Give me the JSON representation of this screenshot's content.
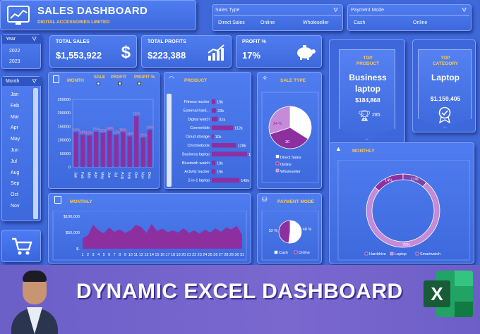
{
  "header": {
    "title": "SALES DASHBOARD",
    "subtitle": "DIGITAL ACCESSORIES LIMITED"
  },
  "sale_type_slicer": {
    "label": "Sales Type",
    "options": [
      "Direct Sales",
      "Online",
      "Wholeseller"
    ]
  },
  "payment_slicer": {
    "label": "Payment Mode",
    "options": [
      "Cash",
      "Online"
    ]
  },
  "year_slicer": {
    "label": "Year",
    "options": [
      "2022",
      "2023"
    ]
  },
  "month_slicer": {
    "label": "Month",
    "options": [
      "Jan",
      "Feb",
      "Mar",
      "Apr",
      "May",
      "Jun",
      "Jul",
      "Aug",
      "Sep",
      "Oct",
      "Nov"
    ]
  },
  "kpis": [
    {
      "label": "TOTAL SALES",
      "value": "$1,553,922",
      "icon": "dollar-icon"
    },
    {
      "label": "TOTAL PROFITS",
      "value": "$223,388",
      "icon": "growth-chart-icon"
    },
    {
      "label": "PROFIT %",
      "value": "17%",
      "icon": "piggy-bank-icon"
    }
  ],
  "top_product": {
    "label_line1": "TOP",
    "label_line2": "PRODUCT",
    "name_line1": "Business",
    "name_line2": "laptop",
    "value": "$184,868",
    "count": "285"
  },
  "top_category": {
    "label_line1": "TOP",
    "label_line2": "CATEGORY",
    "name": "Laptop",
    "value": "$1,159,405"
  },
  "month_panel": {
    "title": "MONTH",
    "checks": [
      "SALE",
      "PROFIT",
      "PROFIT %"
    ]
  },
  "product_panel": {
    "title": "PRODUCT"
  },
  "sale_type_panel": {
    "title": "SALE TYPE"
  },
  "monthly_area_panel": {
    "title": "MONTHLY"
  },
  "payment_panel": {
    "title": "PAYMENT MODE"
  },
  "monthly_donut_panel": {
    "title": "MONTHLY"
  },
  "banner": {
    "text": "DYNAMIC EXCEL DASHBOARD"
  },
  "colors": {
    "accent": "#8e2fa0",
    "gold": "#ffc94a",
    "panel": "#4a75e6"
  },
  "chart_data": [
    {
      "type": "bar",
      "categories": [
        "Jan",
        "Feb",
        "Mar",
        "Apr",
        "May",
        "Jun",
        "Jul",
        "Aug",
        "Sep",
        "Oct",
        "Nov",
        "Dec"
      ],
      "values": [
        128000,
        118000,
        116000,
        130000,
        125000,
        133000,
        118000,
        128000,
        113000,
        187000,
        108000,
        137000
      ],
      "data_labels": [
        "14%",
        "14%",
        "15%",
        "15%",
        "15%",
        "14%",
        "13%",
        "15%",
        "14%",
        "15%",
        "19%",
        "14%"
      ],
      "yticks": [
        "250000",
        "200000",
        "150000",
        "100000",
        "50000",
        "0"
      ],
      "ylim": [
        0,
        250000
      ]
    },
    {
      "type": "bar",
      "orientation": "horizontal",
      "categories": [
        "Fitness tracker",
        "External hard...",
        "Digital watch",
        "Convertible",
        "Cloud storage",
        "Chromebook",
        "Business laptop",
        "Bluetooth watch",
        "Activity tracker",
        "2-in-1 laptop"
      ],
      "values": [
        19,
        23,
        31,
        112,
        10,
        128,
        185,
        19,
        19,
        145
      ],
      "labels": [
        "19k",
        "23k",
        "31k",
        "112k",
        "10k",
        "128k",
        "185k",
        "19k",
        "19k",
        "145k"
      ]
    },
    {
      "type": "pie",
      "categories": [
        "Direct Sales",
        "Online",
        "Wholeseller"
      ],
      "values": [
        34,
        36,
        30
      ],
      "labels": [
        "34 %",
        "36 %",
        "30"
      ],
      "colors": [
        "#ffffff",
        "#8e2fa0",
        "#c58ad8"
      ]
    },
    {
      "type": "area",
      "x": [
        1,
        2,
        3,
        4,
        5,
        6,
        7,
        8,
        9,
        10,
        11,
        12,
        13,
        14,
        15,
        16,
        17,
        18,
        19,
        20,
        21,
        22,
        23,
        24,
        25,
        26,
        27,
        28,
        29,
        30,
        31
      ],
      "values": [
        30000,
        38000,
        68000,
        52000,
        44000,
        60000,
        48000,
        55000,
        45000,
        52000,
        68000,
        62000,
        45000,
        70000,
        50000,
        57000,
        47000,
        52000,
        46000,
        58000,
        45000,
        52000,
        43000,
        54000,
        46000,
        58000,
        48000,
        60000,
        55000,
        65000,
        40000
      ],
      "yticks": [
        "$100,000",
        "$50,000",
        "$-"
      ],
      "ylim": [
        0,
        100000
      ]
    },
    {
      "type": "pie",
      "categories": [
        "Cash",
        "Online"
      ],
      "values": [
        52,
        48
      ],
      "labels": [
        "52 %",
        "48 %"
      ],
      "colors": [
        "#ffffff",
        "#8e2fa0"
      ]
    },
    {
      "type": "pie",
      "donut": true,
      "categories": [
        "Harddrive",
        "Laptop",
        "Smartwatch"
      ],
      "values": [
        14,
        75,
        11
      ],
      "labels": [
        "14%",
        "75%",
        "11%"
      ],
      "colors": [
        "#8e2fa0",
        "#c58ad8",
        "#7a45a8"
      ]
    }
  ]
}
